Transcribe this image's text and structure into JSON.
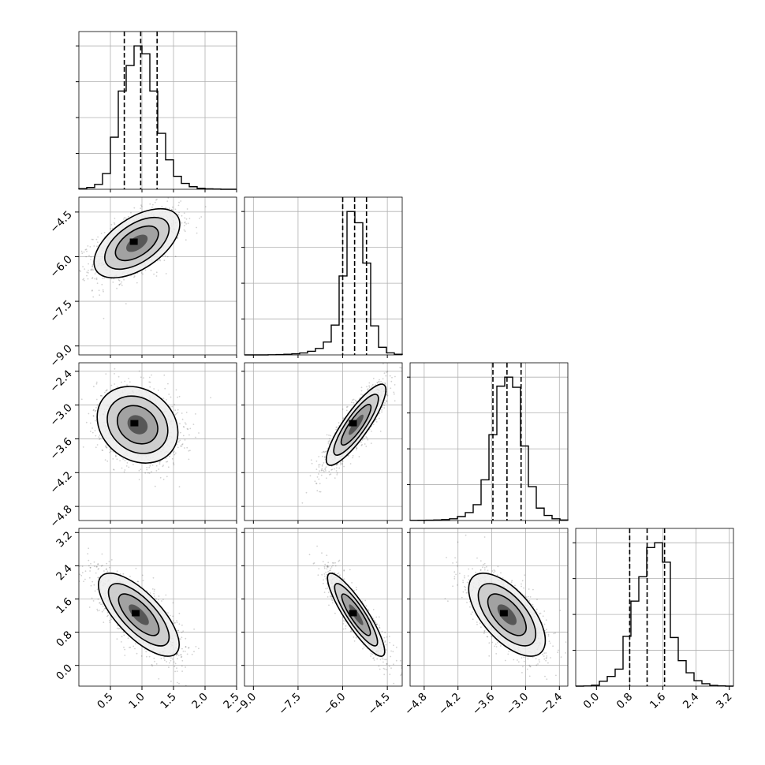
{
  "chart_data": {
    "type": "corner",
    "n_params": 4,
    "grid": true,
    "parameters": [
      {
        "index": 0,
        "range": [
          0.0,
          2.5
        ],
        "ticks": [
          0.5,
          1.0,
          1.5,
          2.0,
          2.5
        ],
        "tick_labels": [
          "0.5",
          "1.0",
          "1.5",
          "2.0",
          "2.5"
        ],
        "quantiles": [
          0.72,
          0.98,
          1.24
        ]
      },
      {
        "index": 1,
        "range": [
          -9.3,
          -4.0
        ],
        "ticks": [
          -9.0,
          -7.5,
          -6.0,
          -4.5
        ],
        "tick_labels": [
          "−9.0",
          "−7.5",
          "−6.0",
          "−4.5"
        ],
        "quantiles": [
          -6.0,
          -5.6,
          -5.2
        ]
      },
      {
        "index": 2,
        "range": [
          -5.05,
          -2.25
        ],
        "ticks": [
          -4.8,
          -4.2,
          -3.6,
          -3.0,
          -2.4
        ],
        "tick_labels": [
          "−4.8",
          "−4.2",
          "−3.6",
          "−3.0",
          "−2.4"
        ],
        "quantiles": [
          -3.58,
          -3.33,
          -3.08
        ]
      },
      {
        "index": 3,
        "range": [
          -0.5,
          3.3
        ],
        "ticks": [
          0.0,
          0.8,
          1.6,
          2.4,
          3.2
        ],
        "tick_labels": [
          "0.0",
          "0.8",
          "1.6",
          "2.4",
          "3.2"
        ],
        "quantiles": [
          0.8,
          1.22,
          1.64
        ]
      }
    ],
    "histograms": [
      {
        "param": 0,
        "bins": [
          0.0,
          0.125,
          0.25,
          0.375,
          0.5,
          0.625,
          0.75,
          0.875,
          1.0,
          1.125,
          1.25,
          1.375,
          1.5,
          1.625,
          1.75,
          1.875,
          2.0,
          2.125,
          2.25,
          2.375,
          2.5
        ],
        "counts": [
          3,
          9,
          25,
          80,
          265,
          500,
          630,
          730,
          690,
          500,
          285,
          150,
          66,
          30,
          13,
          5,
          2,
          1,
          0,
          0
        ]
      },
      {
        "param": 1,
        "bins": [
          -9.3,
          -9.035,
          -8.77,
          -8.505,
          -8.24,
          -7.975,
          -7.71,
          -7.445,
          -7.18,
          -6.915,
          -6.65,
          -6.385,
          -6.12,
          -5.855,
          -5.59,
          -5.325,
          -5.06,
          -4.795,
          -4.53,
          -4.265,
          -4.0
        ],
        "counts": [
          0,
          0,
          0,
          2,
          4,
          8,
          14,
          24,
          45,
          80,
          160,
          370,
          980,
          1780,
          1640,
          1140,
          360,
          95,
          25,
          8
        ]
      },
      {
        "param": 2,
        "bins": [
          -5.05,
          -4.91,
          -4.77,
          -4.63,
          -4.49,
          -4.35,
          -4.21,
          -4.07,
          -3.93,
          -3.79,
          -3.65,
          -3.51,
          -3.37,
          -3.23,
          -3.09,
          -2.95,
          -2.81,
          -2.67,
          -2.53,
          -2.39,
          -2.25
        ],
        "counts": [
          1,
          2,
          3,
          5,
          8,
          15,
          35,
          70,
          140,
          360,
          760,
          1190,
          1270,
          1180,
          660,
          300,
          110,
          45,
          15,
          5
        ]
      },
      {
        "param": 3,
        "bins": [
          -0.5,
          -0.31,
          -0.12,
          0.07,
          0.26,
          0.45,
          0.64,
          0.83,
          1.02,
          1.21,
          1.4,
          1.59,
          1.78,
          1.97,
          2.16,
          2.35,
          2.54,
          2.73,
          2.92,
          3.11,
          3.3
        ],
        "counts": [
          0,
          1,
          8,
          40,
          80,
          140,
          410,
          700,
          900,
          1140,
          1180,
          1020,
          400,
          210,
          110,
          45,
          20,
          6,
          2,
          0
        ]
      }
    ],
    "pairs": [
      {
        "x": 0,
        "y": 1,
        "mean": [
          0.92,
          -5.55
        ],
        "sd": [
          0.34,
          0.58
        ],
        "corr": 0.55
      },
      {
        "x": 0,
        "y": 2,
        "mean": [
          0.93,
          -3.35
        ],
        "sd": [
          0.32,
          0.34
        ],
        "corr": -0.2
      },
      {
        "x": 1,
        "y": 2,
        "mean": [
          -5.55,
          -3.35
        ],
        "sd": [
          0.5,
          0.36
        ],
        "corr": 0.86
      },
      {
        "x": 0,
        "y": 3,
        "mean": [
          0.95,
          1.22
        ],
        "sd": [
          0.32,
          0.5
        ],
        "corr": -0.72
      },
      {
        "x": 1,
        "y": 3,
        "mean": [
          -5.55,
          1.22
        ],
        "sd": [
          0.48,
          0.5
        ],
        "corr": -0.88
      },
      {
        "x": 2,
        "y": 3,
        "mean": [
          -3.33,
          1.22
        ],
        "sd": [
          0.34,
          0.5
        ],
        "corr": -0.62
      }
    ]
  }
}
